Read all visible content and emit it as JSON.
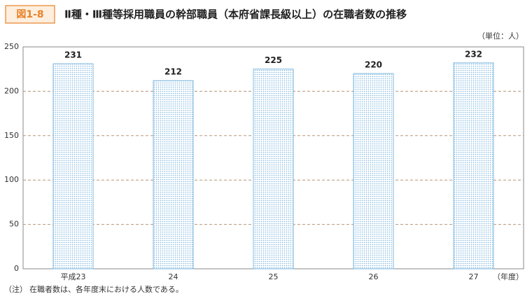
{
  "figure_label": "図1-8",
  "chart_data": {
    "type": "bar",
    "title": "Ⅱ種・Ⅲ種等採用職員の幹部職員（本府省課長級以上）の在職者数の推移",
    "unit_label": "（単位：人）",
    "x_label": "（年度）",
    "categories": [
      "平成23",
      "24",
      "25",
      "26",
      "27"
    ],
    "values": [
      231,
      212,
      225,
      220,
      232
    ],
    "color": "#7fb8e0",
    "ylim": [
      0,
      250
    ],
    "yticks": [
      0,
      50,
      100,
      150,
      200,
      250
    ],
    "grid": true
  },
  "note": {
    "label": "（注）",
    "text": "在職者数は、各年度末における人数である。"
  }
}
